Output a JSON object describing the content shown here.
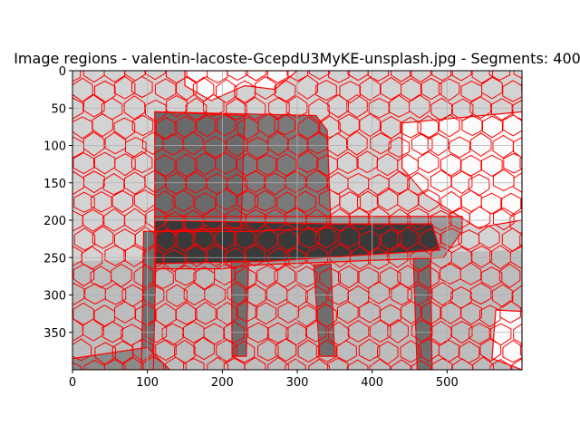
{
  "chart_data": {
    "type": "heatmap",
    "title": "Image regions - valentin-lacoste-GcepdU3MyKE-unsplash.jpg - Segments: 400",
    "xlabel": "",
    "ylabel": "",
    "xlim": [
      0,
      600
    ],
    "ylim": [
      400,
      0
    ],
    "x_ticks": [
      0,
      100,
      200,
      300,
      400,
      500
    ],
    "y_ticks": [
      0,
      50,
      100,
      150,
      200,
      250,
      300,
      350
    ],
    "grid": true,
    "image_width": 600,
    "image_height": 400,
    "segments": 400,
    "boundary_color": "#ff0000",
    "region_colors": {
      "background": "#d3d3d3",
      "light_region": "#fbfbfb",
      "chair_back": "#7a7a7a",
      "seat": "#393939",
      "seat_outline": "#9a9a9a",
      "legs": "#6e6e6e",
      "floor": "#bdbdbd",
      "left_floor": "#8a8a8a"
    }
  }
}
